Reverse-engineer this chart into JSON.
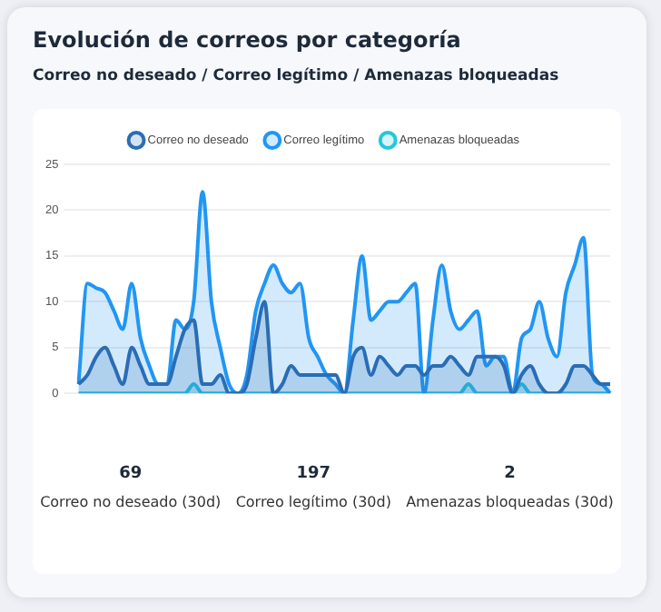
{
  "chart_data": [
    {
      "type": "area",
      "title": "Evolución de correos por categoría",
      "subtitle": "Correo no deseado / Correo legítimo / Amenazas bloqueadas",
      "categories": [
        null,
        null,
        null,
        null,
        null,
        null,
        null,
        null,
        null,
        null,
        null,
        null,
        null,
        null,
        null,
        null,
        null,
        null,
        null,
        null,
        null,
        null,
        null,
        null,
        null,
        null,
        null,
        null,
        null,
        null,
        null,
        null,
        null,
        null,
        null,
        null,
        null,
        null,
        null,
        null,
        null,
        null,
        null,
        null,
        null,
        null,
        null,
        null,
        null,
        null,
        null,
        null,
        null,
        null,
        null,
        null,
        null,
        null,
        null,
        null,
        null
      ],
      "series": [
        {
          "name": "Correo no deseado",
          "color": "#2a6db5",
          "values": [
            1,
            2,
            4,
            5,
            3,
            1,
            5,
            3,
            1,
            1,
            1,
            4,
            7,
            8,
            1,
            1,
            2,
            0,
            0,
            1,
            6,
            10,
            0,
            1,
            3,
            2,
            2,
            2,
            2,
            2,
            0,
            4,
            5,
            2,
            4,
            3,
            2,
            3,
            3,
            2,
            3,
            3,
            4,
            3,
            2,
            4,
            4,
            4,
            3,
            0,
            2,
            3,
            1,
            0,
            0,
            1,
            3,
            3,
            2,
            1,
            1
          ]
        },
        {
          "name": "Correo legítimo",
          "color": "#2196f3",
          "values": [
            1,
            12,
            11.5,
            11,
            9,
            7,
            12,
            6,
            3,
            1,
            1,
            8,
            7,
            10,
            22,
            10,
            5,
            1,
            0,
            2,
            9,
            12,
            14,
            12,
            11,
            12,
            6,
            4,
            2,
            1,
            0,
            8,
            15,
            8,
            9,
            10,
            10,
            11,
            12,
            0,
            8,
            14,
            9,
            7,
            8,
            9,
            3,
            4,
            4,
            0,
            6,
            7,
            10,
            6,
            4,
            11,
            14,
            17,
            2,
            1,
            0
          ]
        },
        {
          "name": "Amenazas bloqueadas",
          "color": "#26c6da",
          "values": [
            0,
            0,
            0,
            0,
            0,
            0,
            0,
            0,
            0,
            0,
            0,
            0,
            0,
            1,
            0,
            0,
            0,
            0,
            0,
            0,
            0,
            0,
            0,
            0,
            0,
            0,
            0,
            0,
            0,
            0,
            0,
            0,
            0,
            0,
            0,
            0,
            0,
            0,
            0,
            0,
            0,
            0,
            0,
            0,
            1,
            0,
            0,
            0,
            0,
            0,
            1,
            0,
            0,
            0,
            0,
            0,
            0,
            0,
            0,
            0,
            0
          ]
        }
      ],
      "ylim": [
        0,
        25
      ],
      "yticks": [
        0,
        5,
        10,
        15,
        20,
        25
      ],
      "grid": "y",
      "legend": "top",
      "marker": "none"
    },
    {
      "type": "other",
      "categories": [
        "Correo no deseado (30d)",
        "Correo legítimo (30d)",
        "Amenazas bloqueadas (30d)"
      ],
      "values": [
        69,
        197,
        2
      ],
      "data_labels": true
    }
  ]
}
